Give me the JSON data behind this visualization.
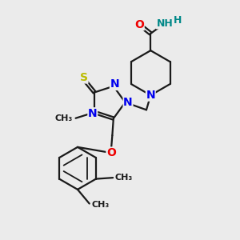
{
  "bg_color": "#ebebeb",
  "atom_colors": {
    "C": "#1a1a1a",
    "N": "#0000ee",
    "O": "#ee0000",
    "S": "#bbbb00",
    "H": "#008888"
  },
  "bond_color": "#1a1a1a",
  "bond_lw": 1.6,
  "font_size": 9,
  "figsize": [
    3.0,
    3.0
  ],
  "dpi": 100,
  "xlim": [
    0,
    10
  ],
  "ylim": [
    0,
    10
  ]
}
